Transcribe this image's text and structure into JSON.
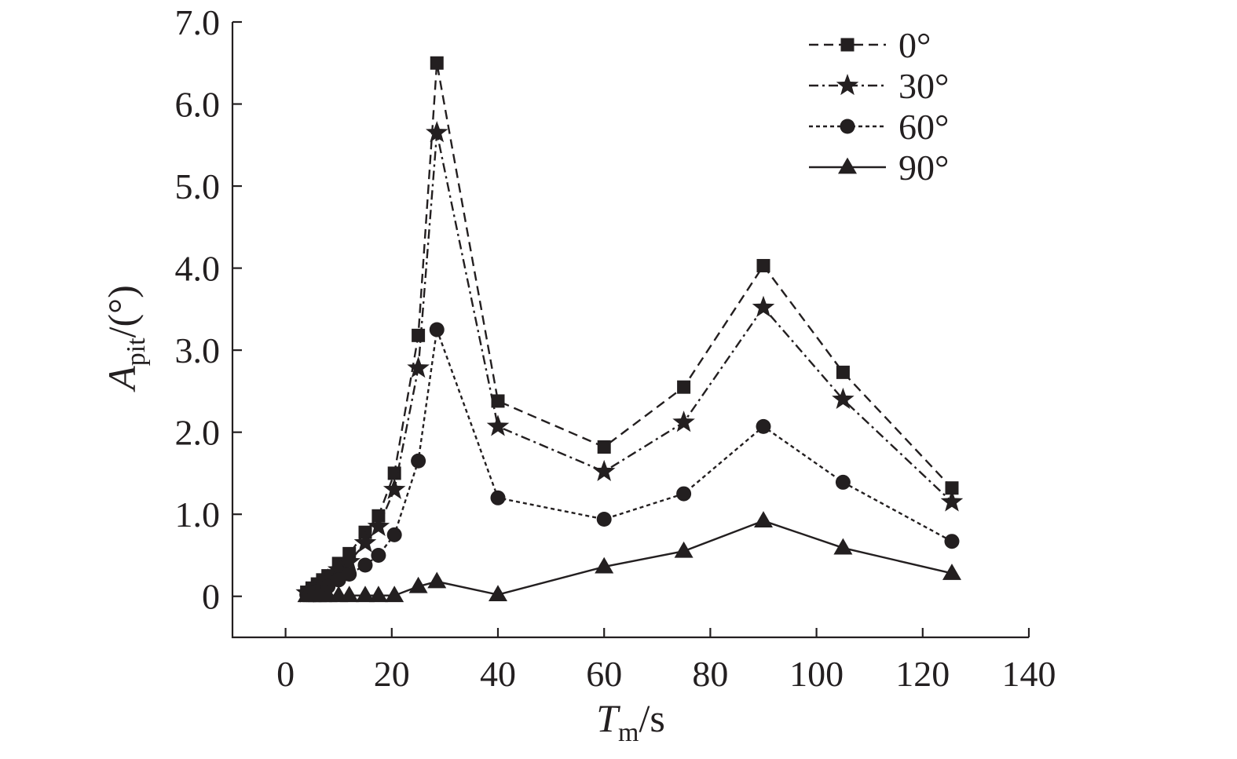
{
  "chart_data": {
    "type": "line",
    "xlabel": {
      "main": "T",
      "sub": "m",
      "rest": "/s"
    },
    "ylabel": {
      "main": "A",
      "sub": "pit",
      "rest": "/(°)"
    },
    "xlim": [
      -10,
      140
    ],
    "ylim": [
      -0.5,
      7.0
    ],
    "x_ticks": [
      0,
      20,
      40,
      60,
      80,
      100,
      120,
      140
    ],
    "x_tick_labels": [
      "0",
      "20",
      "40",
      "60",
      "80",
      "100",
      "120",
      "140"
    ],
    "y_ticks": [
      0,
      1,
      2,
      3,
      4,
      5,
      6,
      7
    ],
    "y_tick_labels": [
      "0",
      "1.0",
      "2.0",
      "3.0",
      "4.0",
      "5.0",
      "6.0",
      "7.0"
    ],
    "grid": false,
    "legend_position": "top-right",
    "colors": {
      "ink": "#231f20"
    },
    "x": [
      4,
      5,
      6,
      7,
      8,
      10,
      12,
      15,
      17.5,
      20.5,
      25,
      28.5,
      40,
      60,
      75,
      90,
      105,
      125.5
    ],
    "series": [
      {
        "name": "0°",
        "marker": "square",
        "line": "dashed",
        "values": [
          0.05,
          0.1,
          0.15,
          0.2,
          0.25,
          0.4,
          0.52,
          0.78,
          0.98,
          1.5,
          3.18,
          6.5,
          2.38,
          1.82,
          2.55,
          4.03,
          2.73,
          1.32
        ]
      },
      {
        "name": "30°",
        "marker": "star",
        "line": "dashdot",
        "values": [
          0.04,
          0.08,
          0.12,
          0.16,
          0.2,
          0.32,
          0.42,
          0.65,
          0.85,
          1.3,
          2.78,
          5.65,
          2.07,
          1.52,
          2.12,
          3.52,
          2.4,
          1.15
        ]
      },
      {
        "name": "60°",
        "marker": "circle",
        "line": "dotted",
        "values": [
          0.02,
          0.04,
          0.06,
          0.09,
          0.12,
          0.2,
          0.27,
          0.38,
          0.5,
          0.75,
          1.65,
          3.25,
          1.2,
          0.94,
          1.25,
          2.07,
          1.39,
          0.67
        ]
      },
      {
        "name": "90°",
        "marker": "triangle",
        "line": "solid",
        "x": [
          4,
          5,
          6,
          7,
          8,
          10,
          12,
          15,
          17.5,
          20.5,
          25,
          28.5,
          40,
          60,
          75,
          90,
          105,
          125.5
        ],
        "values": [
          0.01,
          0.01,
          0.01,
          0.01,
          0.01,
          0.01,
          0.01,
          0.01,
          0.01,
          0.01,
          0.12,
          0.18,
          0.02,
          0.36,
          0.55,
          0.92,
          0.59,
          0.28
        ]
      }
    ]
  }
}
